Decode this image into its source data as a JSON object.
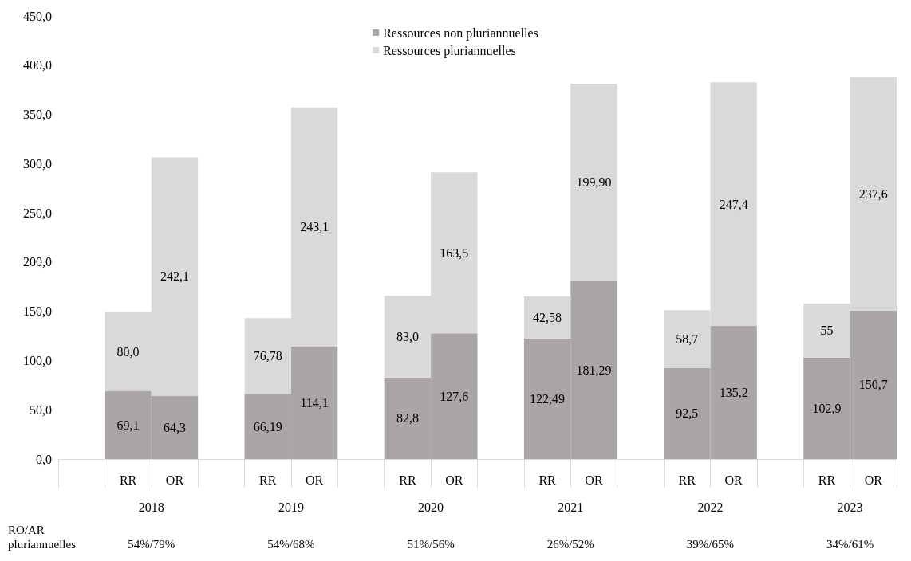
{
  "chart_data": {
    "type": "bar",
    "stacked": true,
    "grid": false,
    "legend": "top",
    "categories": [
      null,
      "RR",
      "OR",
      null,
      "RR",
      "OR",
      null,
      "RR",
      "OR",
      null,
      "RR",
      "OR",
      null,
      "RR",
      "OR",
      null,
      "RR",
      "OR"
    ],
    "ylim": [
      0,
      450
    ],
    "yticks": [
      {
        "value": 0,
        "label": "0,0"
      },
      {
        "value": 50,
        "label": "50,0"
      },
      {
        "value": 100,
        "label": "100,0"
      },
      {
        "value": 150,
        "label": "150,0"
      },
      {
        "value": 200,
        "label": "200,0"
      },
      {
        "value": 250,
        "label": "250,0"
      },
      {
        "value": 300,
        "label": "300,0"
      },
      {
        "value": 350,
        "label": "350,0"
      },
      {
        "value": 400,
        "label": "400,0"
      },
      {
        "value": 450,
        "label": "450,0"
      }
    ],
    "series": [
      {
        "name": "Ressources non pluriannuelles",
        "color": "#aba6a6",
        "values": [
          null,
          69.1,
          64.3,
          null,
          66.19,
          114.1,
          null,
          82.8,
          127.6,
          null,
          122.49,
          181.29,
          null,
          92.5,
          135.2,
          null,
          102.9,
          150.7
        ],
        "value_labels": [
          null,
          "69,1",
          "64,3",
          null,
          "66,19",
          "114,1",
          null,
          "82,8",
          "127,6",
          null,
          "122,49",
          "181,29",
          null,
          "92,5",
          "135,2",
          null,
          "102,9",
          "150,7"
        ]
      },
      {
        "name": "Ressources pluriannuelles",
        "color": "#d9d9d9",
        "values": [
          null,
          80.0,
          242.1,
          null,
          76.78,
          243.1,
          null,
          83.0,
          163.5,
          null,
          42.58,
          199.9,
          null,
          58.7,
          247.4,
          null,
          55,
          237.6
        ],
        "value_labels": [
          null,
          "80,0",
          "242,1",
          null,
          "76,78",
          "243,1",
          null,
          "83,0",
          "163,5",
          null,
          "42,58",
          "199,90",
          null,
          "58,7",
          "247,4",
          null,
          "55",
          "237,6"
        ]
      }
    ],
    "annotations": [
      "2018",
      "2019",
      "2020",
      "2021",
      "2022",
      "2023",
      "RO/AR\npluriannuelles",
      "54%/79%",
      "54%/68%",
      "51%/56%",
      "26%/52%",
      "39%/65%",
      "34%/61%"
    ]
  }
}
